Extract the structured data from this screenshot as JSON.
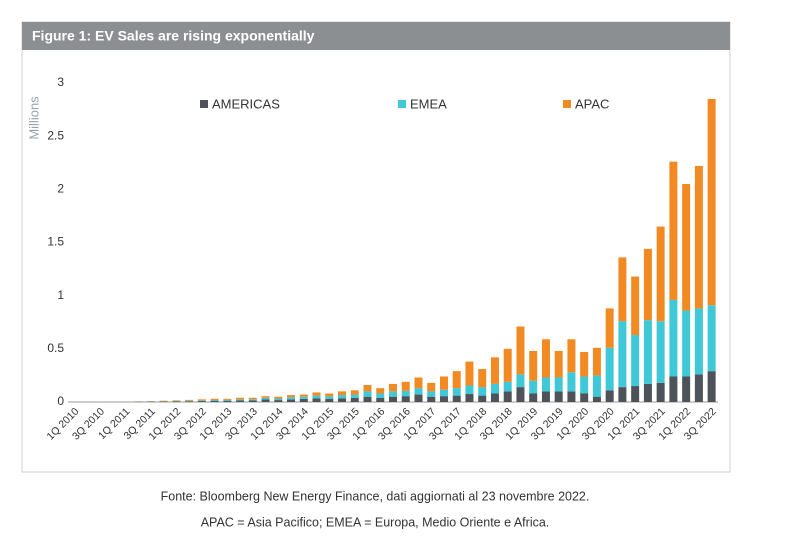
{
  "chart_data": {
    "type": "stacked_bar",
    "title": "Figure 1: EV Sales are rising exponentially",
    "y_label": "Millions",
    "categories": [
      "1Q 2010",
      null,
      "3Q 2010",
      null,
      "1Q 2011",
      null,
      "3Q 2011",
      null,
      "1Q 2012",
      null,
      "3Q 2012",
      null,
      "1Q 2013",
      null,
      "3Q 2013",
      null,
      "1Q 2014",
      null,
      "3Q 2014",
      null,
      "1Q 2015",
      null,
      "3Q 2015",
      null,
      "1Q 2016",
      null,
      "3Q 2016",
      null,
      "1Q 2017",
      null,
      "3Q 2017",
      null,
      "1Q 2018",
      null,
      "3Q 2018",
      null,
      "1Q 2019",
      null,
      "3Q 2019",
      null,
      "1Q 2020",
      null,
      "3Q 2020",
      null,
      "1Q 2021",
      null,
      "3Q 2021",
      null,
      "1Q 2022",
      null,
      "3Q 2022"
    ],
    "series": [
      {
        "name": "AMERICAS",
        "color": "#4d5359",
        "values": [
          0,
          0,
          0,
          0.001,
          0.001,
          0.002,
          0.003,
          0.004,
          0.005,
          0.007,
          0.009,
          0.012,
          0.012,
          0.015,
          0.016,
          0.025,
          0.018,
          0.025,
          0.03,
          0.035,
          0.028,
          0.035,
          0.04,
          0.05,
          0.04,
          0.05,
          0.055,
          0.07,
          0.05,
          0.055,
          0.06,
          0.075,
          0.06,
          0.08,
          0.1,
          0.14,
          0.08,
          0.1,
          0.1,
          0.1,
          0.08,
          0.05,
          0.11,
          0.14,
          0.15,
          0.17,
          0.18,
          0.24,
          0.24,
          0.26,
          0.29
        ]
      },
      {
        "name": "EMEA",
        "color": "#3fc8d8",
        "values": [
          0,
          0,
          0.001,
          0.001,
          0.001,
          0.002,
          0.002,
          0.003,
          0.004,
          0.005,
          0.006,
          0.007,
          0.008,
          0.01,
          0.01,
          0.015,
          0.015,
          0.02,
          0.02,
          0.025,
          0.025,
          0.03,
          0.03,
          0.05,
          0.04,
          0.05,
          0.05,
          0.06,
          0.05,
          0.06,
          0.07,
          0.08,
          0.08,
          0.09,
          0.09,
          0.12,
          0.12,
          0.13,
          0.13,
          0.18,
          0.16,
          0.2,
          0.4,
          0.62,
          0.48,
          0.6,
          0.58,
          0.72,
          0.62,
          0.62,
          0.62
        ]
      },
      {
        "name": "APAC",
        "color": "#f28a24",
        "values": [
          0.001,
          0.001,
          0.001,
          0.001,
          0.002,
          0.002,
          0.003,
          0.005,
          0.006,
          0.008,
          0.01,
          0.011,
          0.01,
          0.015,
          0.014,
          0.015,
          0.017,
          0.02,
          0.02,
          0.03,
          0.027,
          0.035,
          0.04,
          0.06,
          0.05,
          0.07,
          0.085,
          0.1,
          0.08,
          0.125,
          0.16,
          0.225,
          0.17,
          0.25,
          0.31,
          0.45,
          0.28,
          0.36,
          0.25,
          0.31,
          0.23,
          0.26,
          0.37,
          0.6,
          0.55,
          0.67,
          0.89,
          1.3,
          1.19,
          1.34,
          1.94
        ]
      }
    ],
    "ylim": [
      0,
      3
    ],
    "yticks": [
      0,
      0.5,
      1,
      1.5,
      2,
      2.5,
      3
    ],
    "grid": false,
    "legend": "top"
  },
  "notes": [
    "Fonte: Bloomberg New Energy Finance, dati aggiornati al 23 novembre 2022.",
    "APAC = Asia Pacifico; EMEA = Europa, Medio Oriente e Africa."
  ]
}
